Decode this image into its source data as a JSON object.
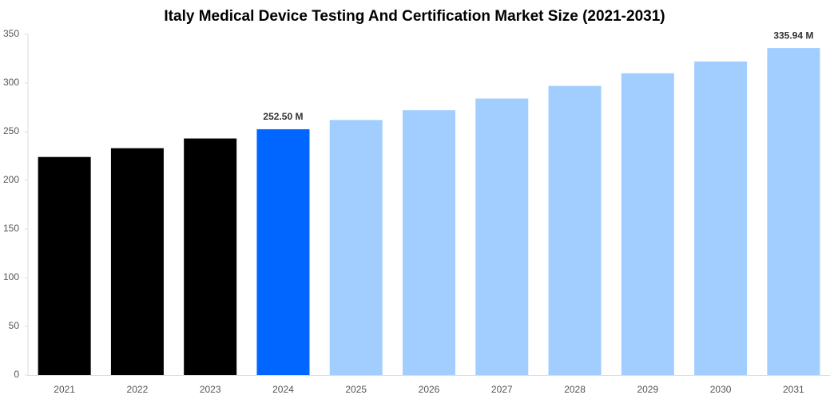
{
  "chart_data": {
    "type": "bar",
    "title": "Italy Medical Device Testing And Certification Market Size (2021-2031)",
    "categories": [
      "2021",
      "2022",
      "2023",
      "2024",
      "2025",
      "2026",
      "2027",
      "2028",
      "2029",
      "2030",
      "2031"
    ],
    "values": [
      224,
      233,
      243,
      252.5,
      262,
      272,
      284,
      297,
      310,
      322,
      335.94
    ],
    "value_labels": [
      null,
      null,
      null,
      "252.50 M",
      null,
      null,
      null,
      null,
      null,
      null,
      "335.94 M"
    ],
    "colors": [
      "#000000",
      "#000000",
      "#000000",
      "#0066ff",
      "#a1cdff",
      "#a1cdff",
      "#a1cdff",
      "#a1cdff",
      "#a1cdff",
      "#a1cdff",
      "#a1cdff"
    ],
    "ylim": [
      0,
      350
    ],
    "yticks": [
      0,
      50,
      100,
      150,
      200,
      250,
      300,
      350
    ],
    "grid": false
  }
}
